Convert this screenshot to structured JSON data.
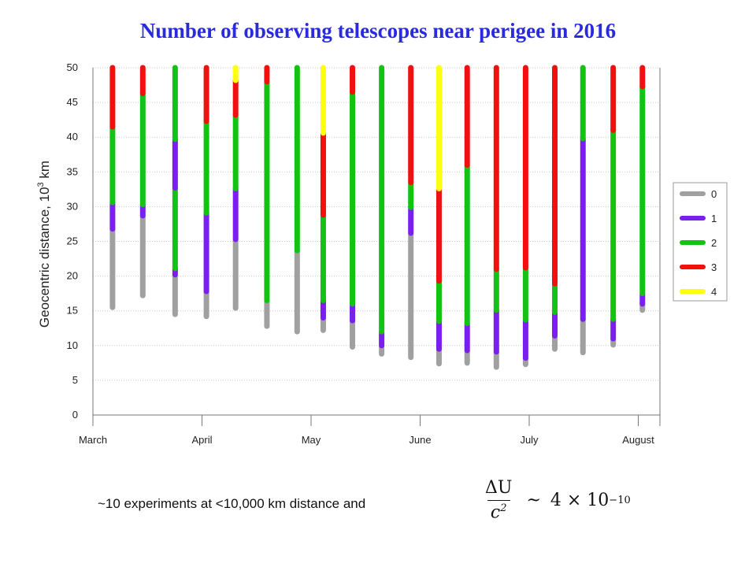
{
  "title": "Number of observing telescopes near perigee in 2016",
  "footnote": "~10 experiments at <10,000 km distance and",
  "formula": {
    "numerator": "ΔU",
    "denominator_base": "c",
    "denominator_exp": "2",
    "relation": "~",
    "coefficient": "4 × 10",
    "exponent": "−10"
  },
  "colors": {
    "0": "#a0a0a0",
    "1": "#7a1ff0",
    "2": "#14c214",
    "3": "#f01010",
    "4": "#ffff10",
    "title": "#2a2ae0",
    "grid": "#c8c8c8"
  },
  "chart_data": {
    "type": "bar",
    "title": "Number of observing telescopes near perigee in 2016",
    "ylabel": "Geocentric distance, 10",
    "ylabel_exp": "3",
    "ylabel_unit": " km",
    "ylim": [
      0,
      50
    ],
    "yticks": [
      0,
      5,
      10,
      15,
      20,
      25,
      30,
      35,
      40,
      45,
      50
    ],
    "xticks": [
      "March",
      "April",
      "May",
      "June",
      "July",
      "August"
    ],
    "xlim": [
      0,
      5.3
    ],
    "grid": true,
    "legend": {
      "position": "right",
      "entries": [
        "0",
        "1",
        "2",
        "3",
        "4"
      ]
    },
    "passes": [
      {
        "x": 0.12,
        "segments": [
          [
            15.5,
            26.8,
            0
          ],
          [
            26.8,
            30.6,
            1
          ],
          [
            30.6,
            41.5,
            2
          ],
          [
            41.5,
            50,
            3
          ]
        ]
      },
      {
        "x": 0.41,
        "segments": [
          [
            17.2,
            28.7,
            0
          ],
          [
            28.7,
            30.3,
            1
          ],
          [
            30.3,
            46.3,
            2
          ],
          [
            46.3,
            50,
            3
          ]
        ]
      },
      {
        "x": 0.72,
        "segments": [
          [
            14.5,
            20.2,
            0
          ],
          [
            20.2,
            21.1,
            1
          ],
          [
            21.1,
            32.7,
            2
          ],
          [
            32.7,
            39.7,
            1
          ],
          [
            39.7,
            50,
            2
          ]
        ]
      },
      {
        "x": 1.02,
        "segments": [
          [
            14.2,
            17.8,
            0
          ],
          [
            17.8,
            29.1,
            1
          ],
          [
            29.1,
            42.3,
            2
          ],
          [
            42.3,
            50,
            3
          ]
        ]
      },
      {
        "x": 1.3,
        "segments": [
          [
            15.4,
            25.3,
            0
          ],
          [
            25.3,
            32.6,
            1
          ],
          [
            32.6,
            43.2,
            2
          ],
          [
            43.2,
            48.2,
            3
          ],
          [
            48.2,
            50,
            4
          ]
        ]
      },
      {
        "x": 1.6,
        "segments": [
          [
            12.8,
            16.5,
            0
          ],
          [
            16.5,
            48.0,
            2
          ],
          [
            48.0,
            50,
            3
          ]
        ]
      },
      {
        "x": 1.89,
        "segments": [
          [
            12.0,
            23.7,
            0
          ],
          [
            23.7,
            50,
            2
          ]
        ]
      },
      {
        "x": 2.14,
        "segments": [
          [
            12.2,
            14.0,
            0
          ],
          [
            14.0,
            16.5,
            1
          ],
          [
            16.5,
            28.8,
            2
          ],
          [
            28.8,
            40.6,
            3
          ],
          [
            40.6,
            50,
            4
          ]
        ]
      },
      {
        "x": 2.42,
        "segments": [
          [
            9.8,
            13.6,
            0
          ],
          [
            13.6,
            16.0,
            1
          ],
          [
            16.0,
            46.5,
            2
          ],
          [
            46.5,
            50,
            3
          ]
        ]
      },
      {
        "x": 2.7,
        "segments": [
          [
            8.8,
            10.0,
            0
          ],
          [
            10.0,
            12.0,
            1
          ],
          [
            12.0,
            50,
            2
          ]
        ]
      },
      {
        "x": 2.98,
        "segments": [
          [
            8.3,
            26.2,
            0
          ],
          [
            26.2,
            29.9,
            1
          ],
          [
            29.9,
            33.5,
            2
          ],
          [
            33.5,
            50,
            3
          ]
        ]
      },
      {
        "x": 3.25,
        "segments": [
          [
            7.4,
            9.5,
            0
          ],
          [
            9.5,
            13.5,
            1
          ],
          [
            13.5,
            19.3,
            2
          ],
          [
            19.3,
            32.6,
            3
          ],
          [
            32.6,
            50,
            4
          ]
        ]
      },
      {
        "x": 3.52,
        "segments": [
          [
            7.5,
            9.3,
            0
          ],
          [
            9.3,
            13.2,
            1
          ],
          [
            13.2,
            36.0,
            2
          ],
          [
            36.0,
            50,
            3
          ]
        ]
      },
      {
        "x": 3.8,
        "segments": [
          [
            6.9,
            9.1,
            0
          ],
          [
            9.1,
            15.1,
            1
          ],
          [
            15.1,
            21.0,
            2
          ],
          [
            21.0,
            50,
            3
          ]
        ]
      },
      {
        "x": 4.08,
        "segments": [
          [
            7.3,
            8.2,
            0
          ],
          [
            8.2,
            13.7,
            1
          ],
          [
            13.7,
            21.2,
            2
          ],
          [
            21.2,
            50,
            3
          ]
        ]
      },
      {
        "x": 4.36,
        "segments": [
          [
            9.5,
            11.4,
            0
          ],
          [
            11.4,
            14.8,
            1
          ],
          [
            14.8,
            18.9,
            2
          ],
          [
            18.9,
            50,
            3
          ]
        ]
      },
      {
        "x": 4.63,
        "segments": [
          [
            9.0,
            13.8,
            0
          ],
          [
            13.8,
            39.8,
            1
          ],
          [
            39.8,
            50,
            2
          ]
        ]
      },
      {
        "x": 4.92,
        "segments": [
          [
            10.1,
            11.0,
            0
          ],
          [
            11.0,
            13.8,
            1
          ],
          [
            13.8,
            41.0,
            2
          ],
          [
            41.0,
            50,
            3
          ]
        ]
      },
      {
        "x": 5.2,
        "segments": [
          [
            15.1,
            16.0,
            0
          ],
          [
            16.0,
            17.5,
            1
          ],
          [
            17.5,
            47.3,
            2
          ],
          [
            47.3,
            50,
            3
          ]
        ]
      }
    ]
  }
}
